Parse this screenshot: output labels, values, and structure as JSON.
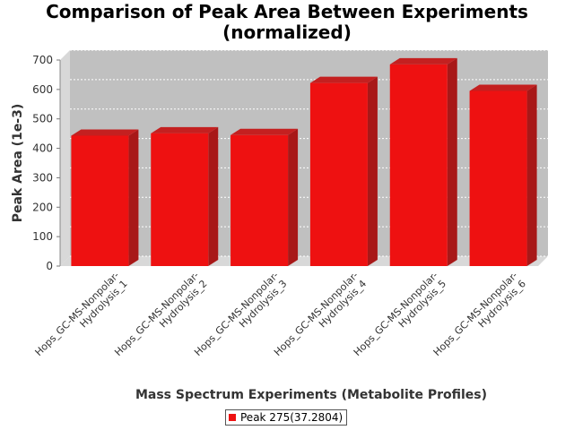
{
  "chart_data": {
    "type": "bar",
    "title": "Comparison of Peak Area Between Experiments",
    "subtitle": "(normalized)",
    "xlabel": "Mass Spectrum Experiments (Metabolite Profiles)",
    "ylabel": "Peak Area (1e-3)",
    "ylim": [
      0,
      700
    ],
    "yticks": [
      0,
      100,
      200,
      300,
      400,
      500,
      600,
      700
    ],
    "categories": [
      "Hops_GC-MS-Nonpolar-Hydrolysis_1",
      "Hops_GC-MS-Nonpolar-Hydrolysis_2",
      "Hops_GC-MS-Nonpolar-Hydrolysis_3",
      "Hops_GC-MS-Nonpolar-Hydrolysis_4",
      "Hops_GC-MS-Nonpolar-Hydrolysis_5",
      "Hops_GC-MS-Nonpolar-Hydrolysis_6"
    ],
    "category_lines": [
      [
        "Hops_GC-MS-Nonpolar-",
        "Hydrolysis_1"
      ],
      [
        "Hops_GC-MS-Nonpolar-",
        "Hydrolysis_2"
      ],
      [
        "Hops_GC-MS-Nonpolar-",
        "Hydrolysis_3"
      ],
      [
        "Hops_GC-MS-Nonpolar-",
        "Hydrolysis_4"
      ],
      [
        "Hops_GC-MS-Nonpolar-",
        "Hydrolysis_5"
      ],
      [
        "Hops_GC-MS-Nonpolar-",
        "Hydrolysis_6"
      ]
    ],
    "series": [
      {
        "name": "Peak 275(37.2804)",
        "values": [
          443,
          451,
          445,
          622,
          685,
          595
        ]
      }
    ],
    "colors": {
      "bar": "#ee1111",
      "bar_side": "#a81818",
      "bar_top": "#c42020",
      "plot_bg": "#c0c0c0",
      "wall": "#d8d8d8",
      "floor": "#d8d8d8"
    },
    "grid": true,
    "legend_position": "bottom"
  }
}
